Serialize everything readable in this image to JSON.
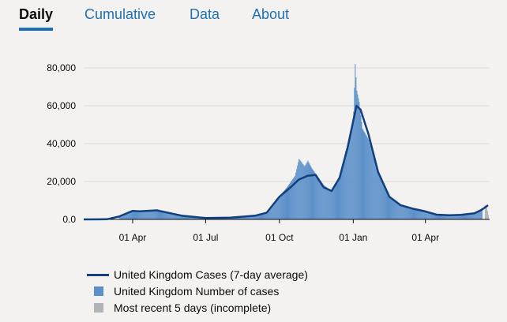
{
  "tabs": [
    {
      "label": "Daily",
      "active": true
    },
    {
      "label": "Cumulative",
      "active": false
    },
    {
      "label": "Data",
      "active": false
    },
    {
      "label": "About",
      "active": false
    }
  ],
  "colors": {
    "accent": "#1d70b8",
    "average_line": "#12407F",
    "bars": "#5B8FC9",
    "incomplete": "#b1b4b6",
    "background": "#f3f2f1"
  },
  "chart_data": {
    "type": "bar",
    "title": "",
    "xlabel": "",
    "ylabel": "",
    "ylim": [
      0,
      85000
    ],
    "xlim": [
      "2020-01-31",
      "2021-06-20"
    ],
    "yticks": [
      0,
      20000,
      40000,
      60000,
      80000
    ],
    "ytick_labels": [
      "0.0",
      "20,000",
      "40,000",
      "60,000",
      "80,000"
    ],
    "xticks": [
      "2020-04-01",
      "2020-07-01",
      "2020-10-01",
      "2021-01-01",
      "2021-04-01"
    ],
    "xtick_labels": [
      "01 Apr",
      "01 Jul",
      "01 Oct",
      "01 Jan",
      "01 Apr"
    ],
    "grid": "horizontal",
    "legend_position": "bottom",
    "series": [
      {
        "name": "United Kingdom Cases (7-day average)",
        "type": "line",
        "x": [
          "2020-01-31",
          "2020-02-29",
          "2020-03-15",
          "2020-04-01",
          "2020-04-10",
          "2020-05-01",
          "2020-06-01",
          "2020-07-01",
          "2020-08-01",
          "2020-09-01",
          "2020-09-15",
          "2020-10-01",
          "2020-10-15",
          "2020-10-25",
          "2020-11-05",
          "2020-11-15",
          "2020-11-25",
          "2020-12-05",
          "2020-12-15",
          "2020-12-25",
          "2021-01-01",
          "2021-01-05",
          "2021-01-10",
          "2021-01-20",
          "2021-02-01",
          "2021-02-15",
          "2021-03-01",
          "2021-03-15",
          "2021-04-01",
          "2021-04-15",
          "2021-05-01",
          "2021-05-15",
          "2021-06-01",
          "2021-06-10",
          "2021-06-18"
        ],
        "y": [
          0,
          100,
          1500,
          4500,
          4300,
          4800,
          2000,
          700,
          900,
          2000,
          3500,
          12000,
          17000,
          21000,
          23000,
          23500,
          17000,
          15000,
          22000,
          38000,
          52000,
          60000,
          58000,
          45000,
          25000,
          12000,
          7500,
          5800,
          4200,
          2500,
          2200,
          2400,
          3200,
          5000,
          7500
        ]
      },
      {
        "name": "United Kingdom Number of cases",
        "type": "bar",
        "x": [
          "2020-03-15",
          "2020-04-01",
          "2020-04-10",
          "2020-05-01",
          "2020-06-01",
          "2020-07-01",
          "2020-08-01",
          "2020-09-01",
          "2020-09-15",
          "2020-10-01",
          "2020-10-10",
          "2020-10-20",
          "2020-10-25",
          "2020-11-01",
          "2020-11-05",
          "2020-11-10",
          "2020-11-15",
          "2020-11-25",
          "2020-12-05",
          "2020-12-15",
          "2020-12-22",
          "2020-12-29",
          "2021-01-01",
          "2021-01-03",
          "2021-01-05",
          "2021-01-08",
          "2021-01-12",
          "2021-01-20",
          "2021-02-01",
          "2021-02-15",
          "2021-03-01",
          "2021-03-15",
          "2021-04-01",
          "2021-04-15",
          "2021-05-01",
          "2021-05-15",
          "2021-06-01",
          "2021-06-10"
        ],
        "y": [
          1500,
          5000,
          4500,
          5000,
          2000,
          700,
          900,
          2000,
          4000,
          12500,
          17000,
          23000,
          32000,
          28000,
          31000,
          27000,
          24000,
          18000,
          15000,
          22000,
          36000,
          45000,
          57000,
          82000,
          68000,
          62000,
          48000,
          42000,
          24000,
          12000,
          7800,
          5500,
          4500,
          2700,
          2300,
          2500,
          3500,
          6000
        ]
      },
      {
        "name": "Most recent 5 days (incomplete)",
        "type": "bar",
        "x": [
          "2021-06-14",
          "2021-06-15",
          "2021-06-16",
          "2021-06-17",
          "2021-06-18"
        ],
        "y": [
          7500,
          7000,
          6500,
          4500,
          2500
        ]
      }
    ]
  }
}
